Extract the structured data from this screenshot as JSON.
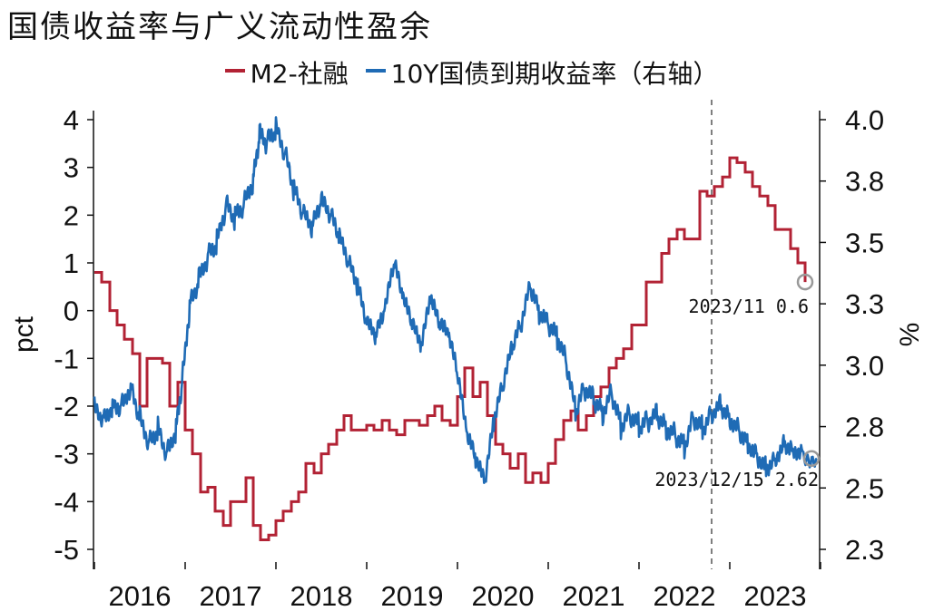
{
  "chart_data": {
    "type": "line",
    "title": "国债收益率与广义流动性盈余",
    "ylabel_left": "pct",
    "ylabel_right": "%",
    "ylim_left": [
      -5,
      4
    ],
    "ylim_right": [
      2.3,
      4.0
    ],
    "yticks_left": [
      "4",
      "3",
      "2",
      "1",
      "0",
      "-1",
      "-2",
      "-3",
      "-4",
      "-5"
    ],
    "yticks_right": [
      "4.0",
      "3.8",
      "3.5",
      "3.3",
      "3.0",
      "2.8",
      "2.5",
      "2.3"
    ],
    "yticks_left_values": [
      4,
      3,
      2,
      1,
      0,
      -1,
      -2,
      -3,
      -4,
      -5
    ],
    "yticks_right_values": [
      4.0,
      3.75,
      3.5,
      3.25,
      3.0,
      2.75,
      2.5,
      2.25
    ],
    "xlim": [
      2015.99,
      2023.99
    ],
    "xticks": [
      "2016",
      "2017",
      "2018",
      "2019",
      "2020",
      "2021",
      "2022",
      "2023"
    ],
    "reference_x": 2022.8,
    "series": [
      {
        "name": "M2-社融",
        "axis": "left",
        "color": "#b22234",
        "x": [
          2016.0,
          2016.08,
          2016.17,
          2016.25,
          2016.33,
          2016.42,
          2016.5,
          2016.58,
          2016.67,
          2016.75,
          2016.83,
          2016.92,
          2017.0,
          2017.08,
          2017.17,
          2017.25,
          2017.33,
          2017.42,
          2017.5,
          2017.58,
          2017.67,
          2017.75,
          2017.83,
          2017.92,
          2018.0,
          2018.08,
          2018.17,
          2018.25,
          2018.33,
          2018.42,
          2018.5,
          2018.58,
          2018.67,
          2018.75,
          2018.83,
          2018.92,
          2019.0,
          2019.08,
          2019.17,
          2019.25,
          2019.33,
          2019.42,
          2019.5,
          2019.58,
          2019.67,
          2019.75,
          2019.83,
          2019.92,
          2020.0,
          2020.08,
          2020.17,
          2020.25,
          2020.33,
          2020.42,
          2020.5,
          2020.58,
          2020.67,
          2020.75,
          2020.83,
          2020.92,
          2021.0,
          2021.08,
          2021.17,
          2021.25,
          2021.33,
          2021.42,
          2021.5,
          2021.58,
          2021.67,
          2021.75,
          2021.83,
          2021.92,
          2022.0,
          2022.08,
          2022.17,
          2022.25,
          2022.33,
          2022.42,
          2022.5,
          2022.58,
          2022.67,
          2022.75,
          2022.83,
          2022.92,
          2023.0,
          2023.08,
          2023.17,
          2023.25,
          2023.33,
          2023.42,
          2023.5,
          2023.58,
          2023.67,
          2023.75,
          2023.83
        ],
        "values": [
          0.8,
          0.6,
          0.0,
          -0.3,
          -0.6,
          -0.9,
          -2.0,
          -1.0,
          -1.0,
          -1.1,
          -2.0,
          -1.5,
          -2.5,
          -3.0,
          -3.8,
          -3.7,
          -4.2,
          -4.5,
          -4.0,
          -4.0,
          -3.5,
          -4.5,
          -4.8,
          -4.7,
          -4.4,
          -4.2,
          -4.0,
          -3.8,
          -3.2,
          -3.4,
          -3.0,
          -2.8,
          -2.5,
          -2.2,
          -2.5,
          -2.5,
          -2.4,
          -2.5,
          -2.3,
          -2.5,
          -2.6,
          -2.3,
          -2.3,
          -2.4,
          -2.2,
          -2.0,
          -2.3,
          -2.4,
          -1.8,
          -1.2,
          -1.8,
          -1.5,
          -2.2,
          -2.8,
          -3.0,
          -3.3,
          -3.0,
          -3.6,
          -3.4,
          -3.6,
          -3.2,
          -2.7,
          -2.3,
          -2.1,
          -2.5,
          -2.2,
          -1.8,
          -1.6,
          -1.2,
          -1.0,
          -0.8,
          -0.3,
          -0.3,
          0.6,
          0.6,
          1.2,
          1.5,
          1.7,
          1.5,
          1.5,
          2.5,
          2.4,
          2.6,
          2.8,
          3.2,
          3.1,
          2.9,
          2.6,
          2.4,
          2.2,
          1.7,
          1.7,
          1.3,
          1.0,
          0.6
        ]
      },
      {
        "name": "10Y国债到期收益率（右轴）",
        "axis": "right",
        "color": "#1f6bb5",
        "x": [
          2016.0,
          2016.1,
          2016.2,
          2016.3,
          2016.4,
          2016.5,
          2016.6,
          2016.7,
          2016.8,
          2016.9,
          2016.97,
          2017.05,
          2017.15,
          2017.25,
          2017.35,
          2017.45,
          2017.55,
          2017.65,
          2017.75,
          2017.82,
          2017.9,
          2018.0,
          2018.1,
          2018.2,
          2018.3,
          2018.4,
          2018.5,
          2018.6,
          2018.7,
          2018.8,
          2018.9,
          2019.0,
          2019.1,
          2019.2,
          2019.3,
          2019.4,
          2019.5,
          2019.6,
          2019.7,
          2019.8,
          2019.9,
          2020.0,
          2020.1,
          2020.2,
          2020.3,
          2020.4,
          2020.5,
          2020.6,
          2020.7,
          2020.8,
          2020.9,
          2021.0,
          2021.1,
          2021.2,
          2021.3,
          2021.4,
          2021.5,
          2021.6,
          2021.7,
          2021.8,
          2021.9,
          2022.0,
          2022.1,
          2022.2,
          2022.3,
          2022.4,
          2022.5,
          2022.6,
          2022.7,
          2022.8,
          2022.9,
          2023.0,
          2023.1,
          2023.2,
          2023.3,
          2023.4,
          2023.5,
          2023.6,
          2023.7,
          2023.8,
          2023.96
        ],
        "values": [
          2.85,
          2.8,
          2.85,
          2.85,
          2.93,
          2.8,
          2.7,
          2.75,
          2.65,
          2.75,
          2.95,
          3.25,
          3.35,
          3.45,
          3.5,
          3.65,
          3.6,
          3.65,
          3.75,
          3.93,
          3.9,
          3.95,
          3.85,
          3.7,
          3.6,
          3.55,
          3.65,
          3.6,
          3.5,
          3.4,
          3.3,
          3.15,
          3.1,
          3.2,
          3.4,
          3.25,
          3.15,
          3.05,
          3.25,
          3.15,
          3.1,
          2.95,
          2.7,
          2.6,
          2.5,
          2.75,
          2.9,
          3.05,
          3.15,
          3.3,
          3.2,
          3.15,
          3.1,
          3.0,
          2.8,
          2.9,
          2.85,
          2.8,
          2.88,
          2.75,
          2.8,
          2.75,
          2.78,
          2.8,
          2.75,
          2.72,
          2.68,
          2.8,
          2.75,
          2.82,
          2.85,
          2.8,
          2.75,
          2.7,
          2.65,
          2.6,
          2.64,
          2.7,
          2.68,
          2.66,
          2.62
        ]
      }
    ],
    "annotations": [
      {
        "text": "2023/11  0.6",
        "x": 2023.83,
        "axis": "left",
        "y": 0.6
      },
      {
        "text": "2023/12/15 2.62",
        "x": 2023.96,
        "axis": "right",
        "y": 2.62
      }
    ],
    "legend_position": "top-center",
    "grid": false
  }
}
